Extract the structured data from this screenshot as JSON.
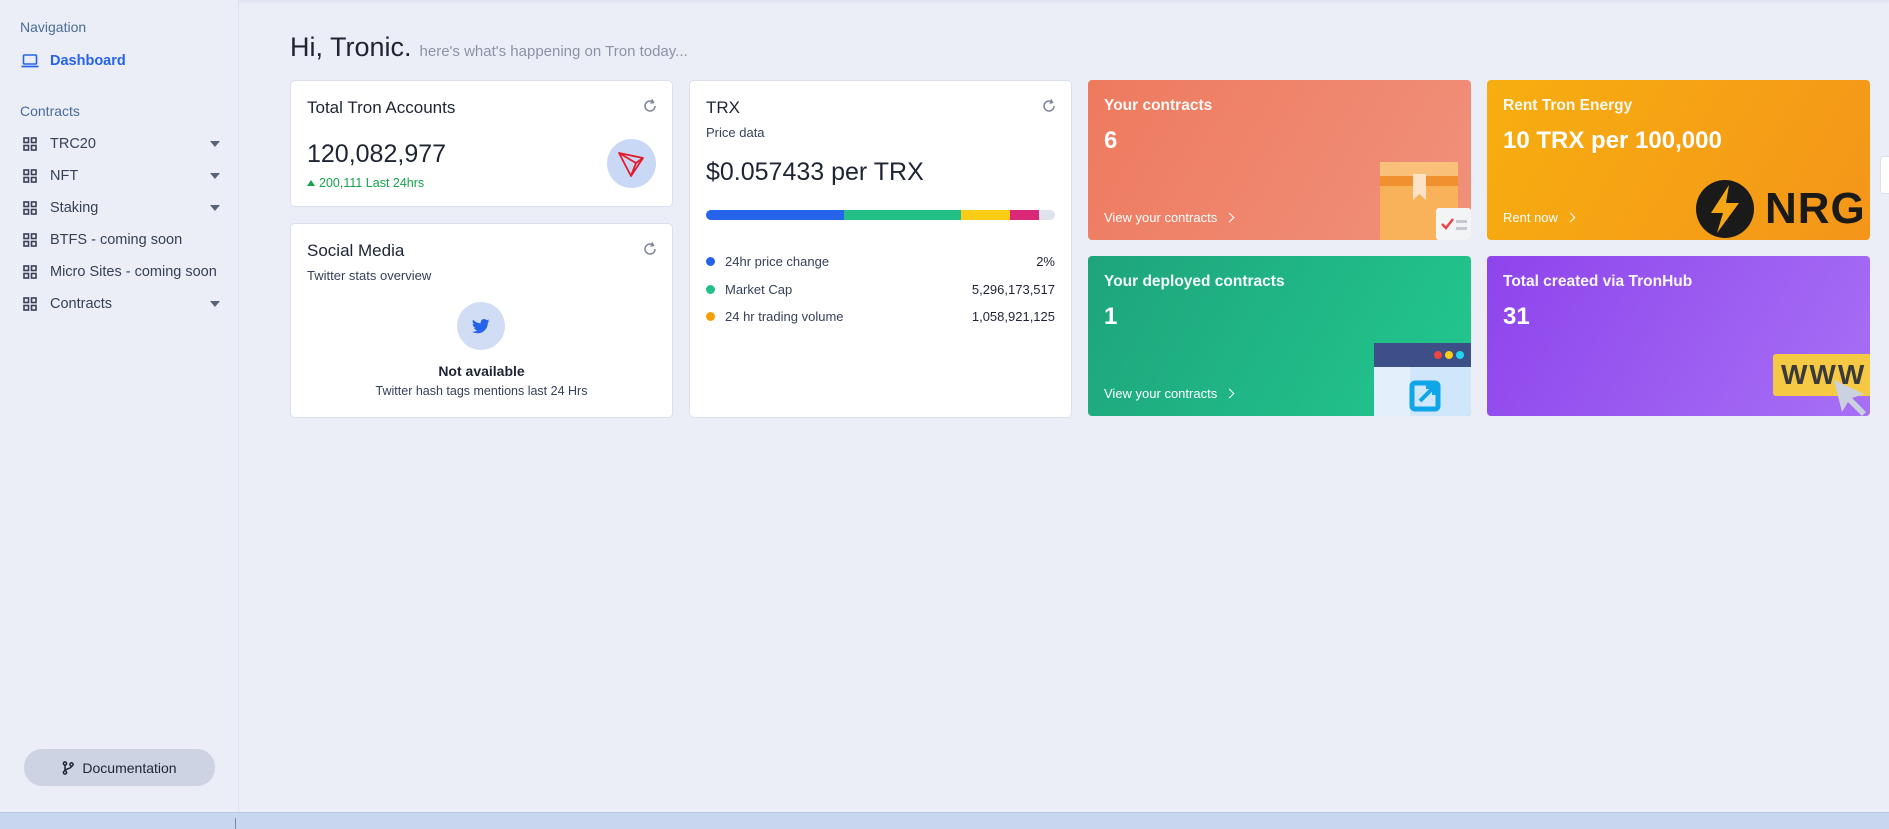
{
  "sidebar": {
    "nav_heading": "Navigation",
    "dashboard_label": "Dashboard",
    "contracts_heading": "Contracts",
    "items": [
      {
        "label": "TRC20",
        "has_caret": true
      },
      {
        "label": "NFT",
        "has_caret": true
      },
      {
        "label": "Staking",
        "has_caret": true
      },
      {
        "label": "BTFS - coming soon",
        "has_caret": false
      },
      {
        "label": "Micro Sites - coming soon",
        "has_caret": false
      },
      {
        "label": "Contracts",
        "has_caret": true
      }
    ],
    "doc_button": "Documentation"
  },
  "header": {
    "greeting": "Hi, Tronic.",
    "subtitle": "here's what's happening on Tron today..."
  },
  "accounts_card": {
    "title": "Total Tron Accounts",
    "value": "120,082,977",
    "delta": "200,111 Last 24hrs"
  },
  "social_card": {
    "title": "Social Media",
    "subtitle": "Twitter stats overview",
    "status": "Not available",
    "note": "Twitter hash tags mentions last 24 Hrs"
  },
  "trx_card": {
    "title": "TRX",
    "subtitle": "Price data",
    "price": "$0.057433 per TRX",
    "bar_segments": [
      {
        "color": "#2563eb",
        "fraction": 0.395
      },
      {
        "color": "#22c087",
        "fraction": 0.335
      },
      {
        "color": "#facc15",
        "fraction": 0.14
      },
      {
        "color": "#db2777",
        "fraction": 0.085
      },
      {
        "color": "#dfe3ec",
        "fraction": 0.045
      }
    ],
    "rows": [
      {
        "label": "24hr price change",
        "value": "2%",
        "color": "#2563eb"
      },
      {
        "label": "Market Cap",
        "value": "5,296,173,517",
        "color": "#22c087"
      },
      {
        "label": "24 hr trading volume",
        "value": "1,058,921,125",
        "color": "#f59e0b"
      }
    ]
  },
  "tiles": {
    "contracts": {
      "title": "Your contracts",
      "value": "6",
      "link": "View your contracts",
      "color": "#ef7f66"
    },
    "energy": {
      "title": "Rent Tron Energy",
      "value": "10 TRX per 100,000",
      "link": "Rent now",
      "logo_text": "NRG",
      "color": "#f5a614"
    },
    "deployed": {
      "title": "Your deployed contracts",
      "value": "1",
      "link": "View your contracts",
      "color": "#1fad84"
    },
    "created": {
      "title": "Total created via TronHub",
      "value": "31",
      "art_text": "WWW",
      "color": "#9a55f0"
    }
  }
}
